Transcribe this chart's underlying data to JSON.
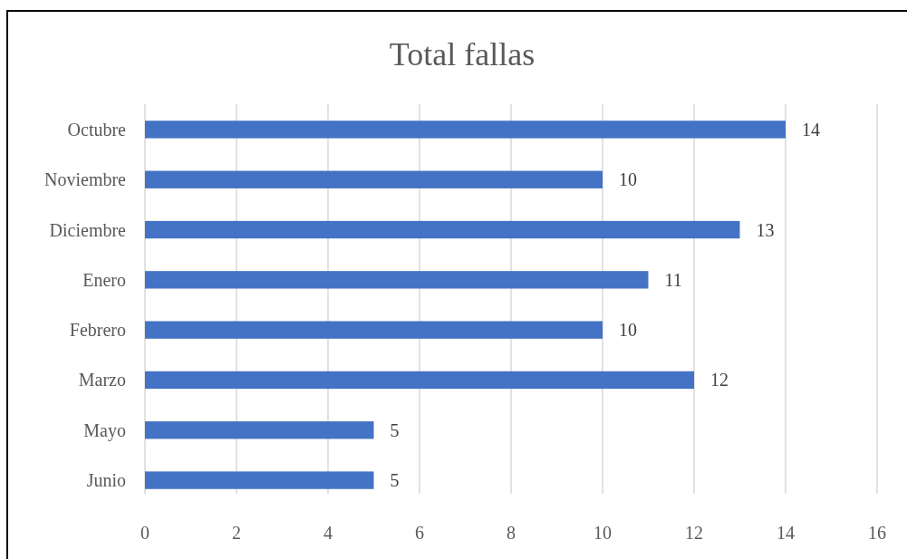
{
  "chart_data": {
    "type": "bar",
    "orientation": "horizontal",
    "title": "Total fallas",
    "categories": [
      "Octubre",
      "Noviembre",
      "Diciembre",
      "Enero",
      "Febrero",
      "Marzo",
      "Mayo",
      "Junio"
    ],
    "values": [
      14,
      10,
      13,
      11,
      10,
      12,
      5,
      5
    ],
    "color": "#4472c4",
    "xlim": [
      0,
      16
    ],
    "xticks": [
      0,
      2,
      4,
      6,
      8,
      10,
      12,
      14,
      16
    ],
    "grid": "x",
    "data_labels": true
  }
}
